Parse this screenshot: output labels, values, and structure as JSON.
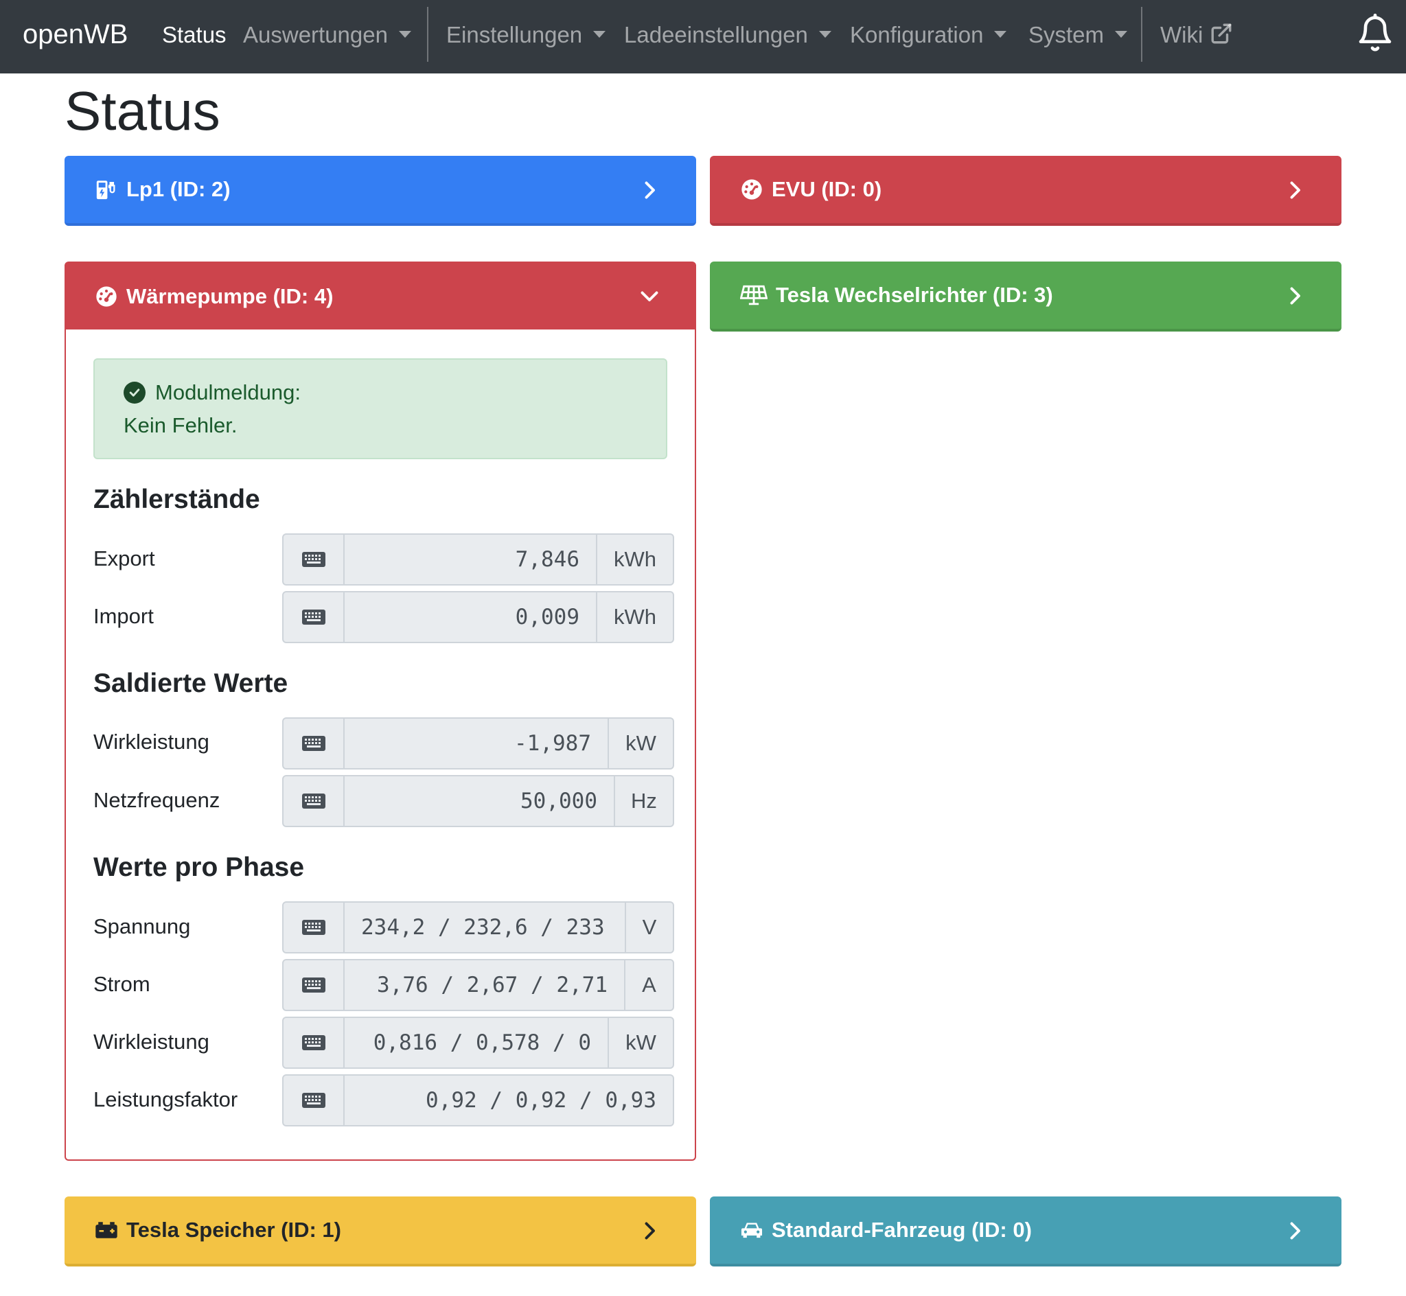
{
  "navbar": {
    "brand": "openWB",
    "items": [
      {
        "label": "Status"
      },
      {
        "label": "Auswertungen"
      },
      {
        "label": "Einstellungen"
      },
      {
        "label": "Ladeeinstellungen"
      },
      {
        "label": "Konfiguration"
      },
      {
        "label": "System"
      },
      {
        "label": "Wiki"
      }
    ],
    "icons": {
      "wiki": "external-link-icon",
      "notifications": "bell-icon"
    }
  },
  "page": {
    "title": "Status"
  },
  "cards": {
    "lp1": {
      "title": "Lp1 (ID: 2)",
      "icon": "charging-station-icon",
      "color": "#347ef3"
    },
    "evu": {
      "title": "EVU (ID: 0)",
      "icon": "gauge-icon",
      "color": "#cc444c"
    },
    "waermepumpe": {
      "title": "Wärmepumpe (ID: 4)",
      "icon": "gauge-icon",
      "color": "#cc444c"
    },
    "tesla_wr": {
      "title": "Tesla Wechselrichter (ID: 3)",
      "icon": "solar-panel-icon",
      "color": "#56a852"
    },
    "tesla_speicher": {
      "title": "Tesla Speicher (ID: 1)",
      "icon": "battery-icon",
      "color": "#f3c344"
    },
    "fahrzeug": {
      "title": "Standard-Fahrzeug (ID: 0)",
      "icon": "car-icon",
      "color": "#47a0b4"
    }
  },
  "module": {
    "alert_label": "Modulmeldung:",
    "alert_text": "Kein Fehler.",
    "sections": {
      "zaehler": "Zählerstände",
      "saldiert": "Saldierte Werte",
      "phase": "Werte pro Phase"
    },
    "rows": {
      "export": {
        "label": "Export",
        "value": "7,846",
        "unit": "kWh"
      },
      "import": {
        "label": "Import",
        "value": "0,009",
        "unit": "kWh"
      },
      "wirkleistung": {
        "label": "Wirkleistung",
        "value": "-1,987",
        "unit": "kW"
      },
      "netzfrequenz": {
        "label": "Netzfrequenz",
        "value": "50,000",
        "unit": "Hz"
      },
      "spannung": {
        "label": "Spannung",
        "value": "234,2 / 232,6 / 233",
        "unit": "V"
      },
      "strom": {
        "label": "Strom",
        "value": "3,76 / 2,67 / 2,71",
        "unit": "A"
      },
      "wirkleistung_phase": {
        "label": "Wirkleistung",
        "value": "0,816 / 0,578 / 0",
        "unit": "kW"
      },
      "leistungsfaktor": {
        "label": "Leistungsfaktor",
        "value": "0,92 / 0,92 / 0,93",
        "unit": ""
      }
    }
  }
}
